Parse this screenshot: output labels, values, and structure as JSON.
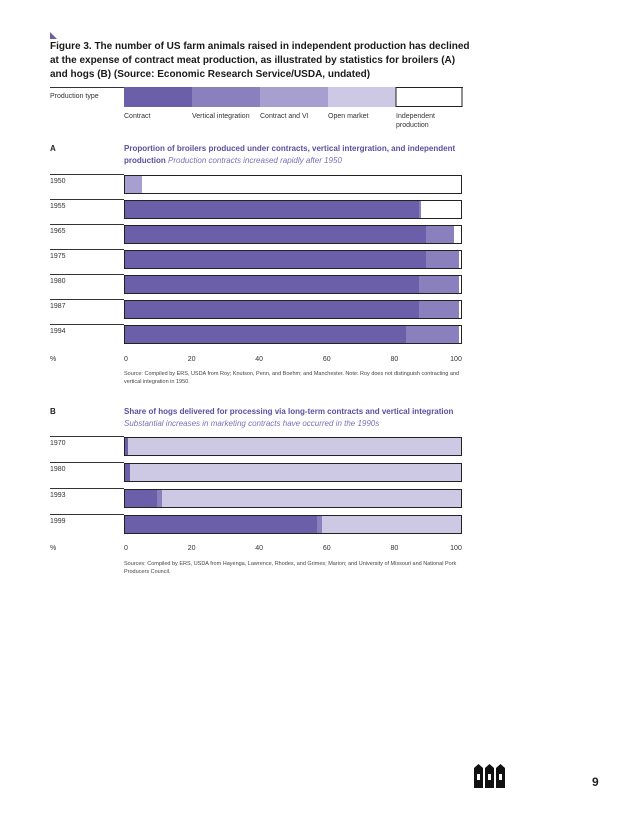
{
  "figure": {
    "title": "Figure 3. The number of US farm animals raised in independent production has declined at the expense of contract meat production, as illustrated by statistics for broilers (A) and hogs (B) (Source: Economic Research Service/USDA, undated)"
  },
  "legend": {
    "label": "Production type",
    "items": [
      {
        "label": "Contract",
        "color": "#6a5fa8"
      },
      {
        "label": "Vertical integration",
        "color": "#8a80bd"
      },
      {
        "label": "Contract and VI",
        "color": "#a79fd0"
      },
      {
        "label": "Open market",
        "color": "#cdc8e4"
      },
      {
        "label": "Independent production",
        "color": "#ffffff"
      }
    ]
  },
  "page_number": "9",
  "chart_data": [
    {
      "type": "bar",
      "panel": "A",
      "title": "Proportion of broilers produced under contracts, vertical intergration, and independent production",
      "subtitle": "Production contracts increased rapidly after 1950",
      "xlabel": "%",
      "xlim": [
        0,
        100
      ],
      "xticks": [
        "0",
        "20",
        "40",
        "60",
        "80",
        "100"
      ],
      "stacked": true,
      "orientation": "horizontal",
      "categories": [
        "1950",
        "1955",
        "1965",
        "1975",
        "1980",
        "1987",
        "1994"
      ],
      "series": [
        {
          "name": "Contract",
          "color": "#6a5fa8",
          "values": [
            0,
            87.5,
            89.5,
            89.5,
            87.5,
            87.5,
            83.5
          ]
        },
        {
          "name": "Vertical integration",
          "color": "#8a80bd",
          "values": [
            0,
            0.5,
            8.5,
            10,
            12,
            12,
            16
          ]
        },
        {
          "name": "Contract and VI",
          "color": "#a79fd0",
          "values": [
            5,
            0,
            0,
            0,
            0,
            0,
            0
          ]
        }
      ],
      "source": "Source: Compiled by ERS, USDA from Roy; Knutson, Penn, and Boehm; and Manchester. Note: Roy does not distinguish contracting and vertical integration in 1950."
    },
    {
      "type": "bar",
      "panel": "B",
      "title": "Share of hogs delivered for processing via long-term contracts and vertical integration",
      "subtitle": "Substantial increases in marketing contracts have occurred in the 1990s",
      "xlabel": "%",
      "xlim": [
        0,
        100
      ],
      "xticks": [
        "0",
        "20",
        "40",
        "60",
        "80",
        "100"
      ],
      "stacked": true,
      "orientation": "horizontal",
      "categories": [
        "1970",
        "1980",
        "1993",
        "1999"
      ],
      "series": [
        {
          "name": "Contract",
          "color": "#6a5fa8",
          "values": [
            1,
            1.5,
            9.5,
            57
          ]
        },
        {
          "name": "Vertical integration",
          "color": "#8a80bd",
          "values": [
            0,
            0,
            1.5,
            1.5
          ]
        },
        {
          "name": "Open market",
          "color": "#cdc8e4",
          "values": [
            99,
            98.5,
            89,
            41.5
          ]
        }
      ],
      "source": "Sources: Compiled by ERS, USDA from Hayenga, Lawrence, Rhodes, and Grimes; Marion; and University of Missouri and National Pork Producers Council."
    }
  ]
}
